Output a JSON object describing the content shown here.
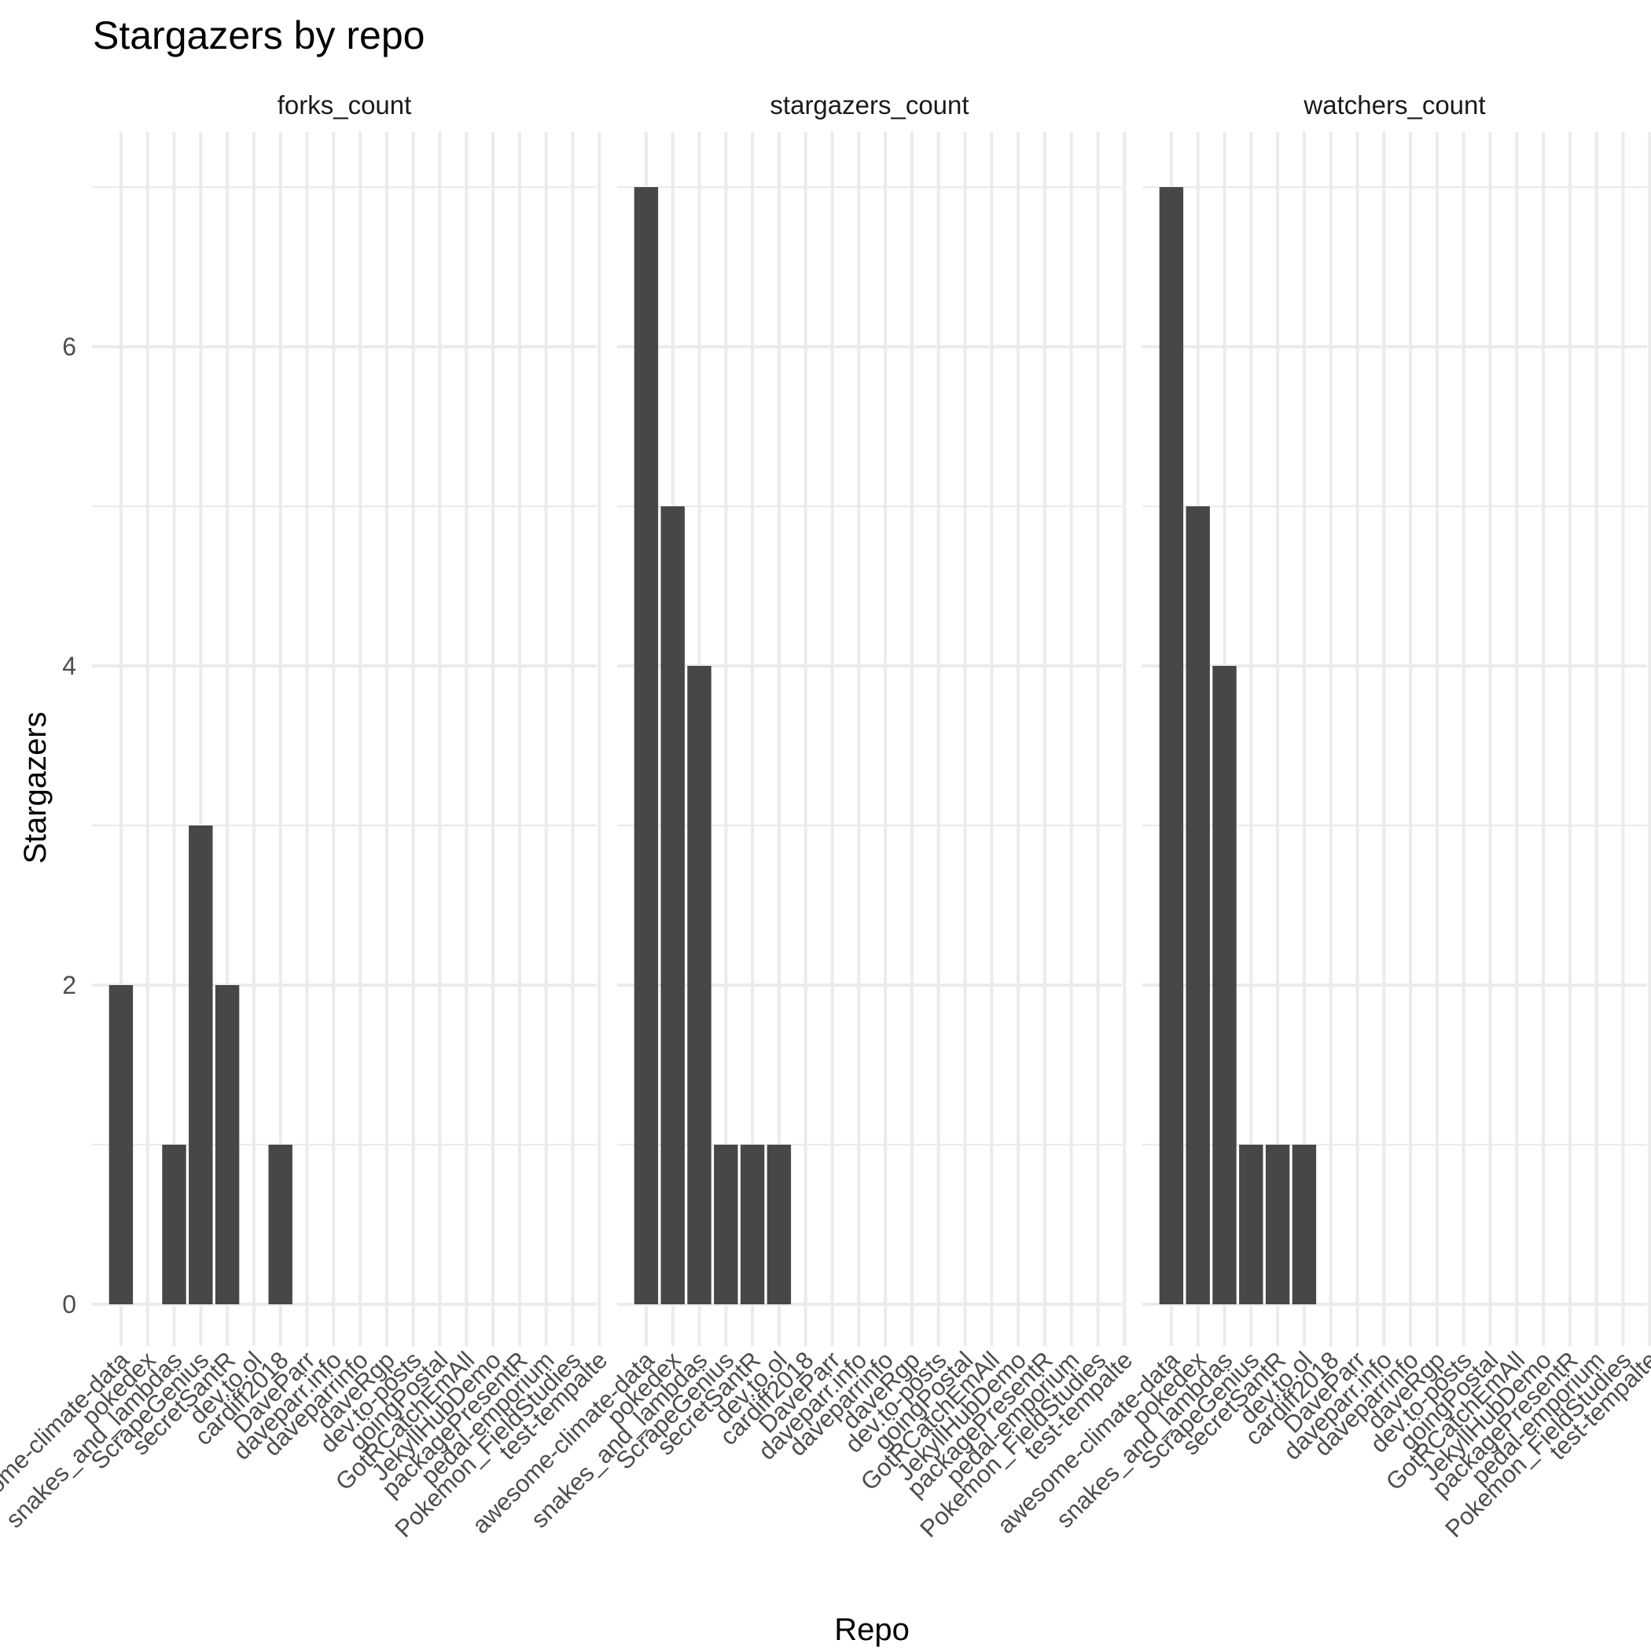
{
  "chart_data": {
    "type": "bar",
    "title": "Stargazers by repo",
    "xlabel": "Repo",
    "ylabel": "Stargazers",
    "ylim": [
      -0.35,
      7.35
    ],
    "yticks": [
      0,
      2,
      4,
      6
    ],
    "grid": true,
    "categories": [
      "awesome-climate-data",
      "pokedex",
      "snakes_and_lambdas",
      "ScrapeGenius",
      "secretSantR",
      "dev.to.ol",
      "cardiff2018",
      "DaveParr",
      "daveparr.info",
      "daveparrinfo",
      "daveRgp",
      "dev.to-posts",
      "goingPostal",
      "GotRCatchEmAll",
      "JekyllHubDemo",
      "packagePresentR",
      "pedal-emporium",
      "Pokemon_FieldStudies",
      "test-tempalte"
    ],
    "facets": [
      {
        "name": "forks_count",
        "values": [
          2,
          0,
          1,
          3,
          2,
          0,
          1,
          0,
          0,
          0,
          0,
          0,
          0,
          0,
          0,
          0,
          0,
          0,
          0
        ]
      },
      {
        "name": "stargazers_count",
        "values": [
          7,
          5,
          4,
          1,
          1,
          1,
          0,
          0,
          0,
          0,
          0,
          0,
          0,
          0,
          0,
          0,
          0,
          0,
          0
        ]
      },
      {
        "name": "watchers_count",
        "values": [
          7,
          5,
          4,
          1,
          1,
          1,
          0,
          0,
          0,
          0,
          0,
          0,
          0,
          0,
          0,
          0,
          0,
          0,
          0
        ]
      }
    ],
    "bar_color": "#474747",
    "grid_color": "#ebebeb"
  }
}
